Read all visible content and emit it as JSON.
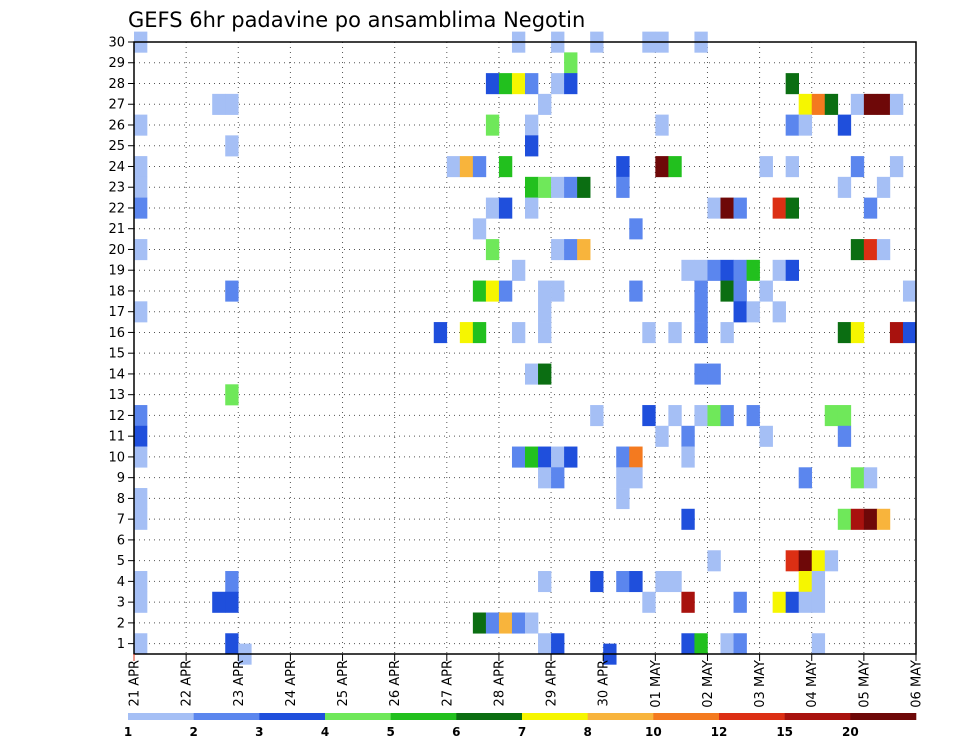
{
  "chart_data": {
    "type": "heatmap",
    "title": "GEFS 6hr padavine po ansamblima Negotin",
    "xlabel": "",
    "ylabel": "",
    "grid": true,
    "x_ticks": [
      "21 APR",
      "22 APR",
      "23 APR",
      "24 APR",
      "25 APR",
      "26 APR",
      "27 APR",
      "28 APR",
      "29 APR",
      "30 APR",
      "01 MAY",
      "02 MAY",
      "03 MAY",
      "04 MAY",
      "05 MAY",
      "06 MAY"
    ],
    "y_ticks": [
      "1",
      "2",
      "3",
      "4",
      "5",
      "6",
      "7",
      "8",
      "9",
      "10",
      "11",
      "12",
      "13",
      "14",
      "15",
      "16",
      "17",
      "18",
      "19",
      "20",
      "21",
      "22",
      "23",
      "24",
      "25",
      "26",
      "27",
      "28",
      "29",
      "30"
    ],
    "xlim": [
      "21 APR",
      "06 MAY"
    ],
    "ylim": [
      0.5,
      30
    ],
    "steps_per_day": 4,
    "legend": {
      "position": "bottom",
      "levels": [
        "1",
        "2",
        "3",
        "4",
        "5",
        "6",
        "7",
        "8",
        "10",
        "12",
        "15",
        "20"
      ],
      "colors": [
        "#a5bff5",
        "#5b86ee",
        "#1f4fdc",
        "#6fe85a",
        "#22c01e",
        "#0b6e12",
        "#f6f600",
        "#f8b43c",
        "#f47a1f",
        "#dc2f14",
        "#a8120e",
        "#6e0808"
      ]
    },
    "cells": [
      {
        "member": 30,
        "step": 1,
        "level": 1
      },
      {
        "member": 30,
        "step": 30,
        "level": 1
      },
      {
        "member": 30,
        "step": 33,
        "level": 1
      },
      {
        "member": 30,
        "step": 36,
        "level": 1
      },
      {
        "member": 30,
        "step": 40,
        "level": 1
      },
      {
        "member": 30,
        "step": 41,
        "level": 1
      },
      {
        "member": 30,
        "step": 44,
        "level": 1
      },
      {
        "member": 29,
        "step": 34,
        "level": 4
      },
      {
        "member": 28,
        "step": 28,
        "level": 3
      },
      {
        "member": 28,
        "step": 29,
        "level": 5
      },
      {
        "member": 28,
        "step": 30,
        "level": 7
      },
      {
        "member": 28,
        "step": 31,
        "level": 2
      },
      {
        "member": 28,
        "step": 33,
        "level": 1
      },
      {
        "member": 28,
        "step": 34,
        "level": 3
      },
      {
        "member": 28,
        "step": 51,
        "level": 6
      },
      {
        "member": 27,
        "step": 7,
        "level": 1
      },
      {
        "member": 27,
        "step": 8,
        "level": 1
      },
      {
        "member": 27,
        "step": 32,
        "level": 1
      },
      {
        "member": 27,
        "step": 52,
        "level": 7
      },
      {
        "member": 27,
        "step": 53,
        "level": 9
      },
      {
        "member": 27,
        "step": 54,
        "level": 6
      },
      {
        "member": 27,
        "step": 56,
        "level": 1
      },
      {
        "member": 27,
        "step": 57,
        "level": 12
      },
      {
        "member": 27,
        "step": 58,
        "level": 12
      },
      {
        "member": 27,
        "step": 59,
        "level": 1
      },
      {
        "member": 26,
        "step": 1,
        "level": 1
      },
      {
        "member": 26,
        "step": 28,
        "level": 4
      },
      {
        "member": 26,
        "step": 31,
        "level": 1
      },
      {
        "member": 26,
        "step": 41,
        "level": 1
      },
      {
        "member": 26,
        "step": 51,
        "level": 2
      },
      {
        "member": 26,
        "step": 52,
        "level": 1
      },
      {
        "member": 26,
        "step": 55,
        "level": 3
      },
      {
        "member": 25,
        "step": 8,
        "level": 1
      },
      {
        "member": 25,
        "step": 31,
        "level": 3
      },
      {
        "member": 24,
        "step": 1,
        "level": 1
      },
      {
        "member": 24,
        "step": 25,
        "level": 1
      },
      {
        "member": 24,
        "step": 26,
        "level": 8
      },
      {
        "member": 24,
        "step": 27,
        "level": 2
      },
      {
        "member": 24,
        "step": 29,
        "level": 5
      },
      {
        "member": 24,
        "step": 38,
        "level": 3
      },
      {
        "member": 24,
        "step": 41,
        "level": 12
      },
      {
        "member": 24,
        "step": 42,
        "level": 5
      },
      {
        "member": 24,
        "step": 49,
        "level": 1
      },
      {
        "member": 24,
        "step": 51,
        "level": 1
      },
      {
        "member": 24,
        "step": 56,
        "level": 2
      },
      {
        "member": 24,
        "step": 59,
        "level": 1
      },
      {
        "member": 23,
        "step": 1,
        "level": 1
      },
      {
        "member": 23,
        "step": 31,
        "level": 5
      },
      {
        "member": 23,
        "step": 32,
        "level": 4
      },
      {
        "member": 23,
        "step": 33,
        "level": 1
      },
      {
        "member": 23,
        "step": 34,
        "level": 2
      },
      {
        "member": 23,
        "step": 35,
        "level": 6
      },
      {
        "member": 23,
        "step": 38,
        "level": 2
      },
      {
        "member": 23,
        "step": 55,
        "level": 1
      },
      {
        "member": 23,
        "step": 58,
        "level": 1
      },
      {
        "member": 22,
        "step": 1,
        "level": 2
      },
      {
        "member": 22,
        "step": 28,
        "level": 1
      },
      {
        "member": 22,
        "step": 29,
        "level": 3
      },
      {
        "member": 22,
        "step": 31,
        "level": 1
      },
      {
        "member": 22,
        "step": 45,
        "level": 1
      },
      {
        "member": 22,
        "step": 46,
        "level": 12
      },
      {
        "member": 22,
        "step": 47,
        "level": 2
      },
      {
        "member": 22,
        "step": 50,
        "level": 10
      },
      {
        "member": 22,
        "step": 51,
        "level": 6
      },
      {
        "member": 22,
        "step": 57,
        "level": 2
      },
      {
        "member": 21,
        "step": 27,
        "level": 1
      },
      {
        "member": 21,
        "step": 39,
        "level": 2
      },
      {
        "member": 20,
        "step": 1,
        "level": 1
      },
      {
        "member": 20,
        "step": 28,
        "level": 4
      },
      {
        "member": 20,
        "step": 33,
        "level": 1
      },
      {
        "member": 20,
        "step": 34,
        "level": 2
      },
      {
        "member": 20,
        "step": 35,
        "level": 8
      },
      {
        "member": 20,
        "step": 56,
        "level": 6
      },
      {
        "member": 20,
        "step": 57,
        "level": 10
      },
      {
        "member": 20,
        "step": 58,
        "level": 1
      },
      {
        "member": 19,
        "step": 30,
        "level": 1
      },
      {
        "member": 19,
        "step": 43,
        "level": 1
      },
      {
        "member": 19,
        "step": 44,
        "level": 1
      },
      {
        "member": 19,
        "step": 45,
        "level": 2
      },
      {
        "member": 19,
        "step": 46,
        "level": 3
      },
      {
        "member": 19,
        "step": 47,
        "level": 2
      },
      {
        "member": 19,
        "step": 48,
        "level": 5
      },
      {
        "member": 19,
        "step": 50,
        "level": 1
      },
      {
        "member": 19,
        "step": 51,
        "level": 3
      },
      {
        "member": 18,
        "step": 8,
        "level": 2
      },
      {
        "member": 18,
        "step": 27,
        "level": 5
      },
      {
        "member": 18,
        "step": 28,
        "level": 7
      },
      {
        "member": 18,
        "step": 29,
        "level": 2
      },
      {
        "member": 18,
        "step": 32,
        "level": 1
      },
      {
        "member": 18,
        "step": 33,
        "level": 1
      },
      {
        "member": 18,
        "step": 39,
        "level": 2
      },
      {
        "member": 18,
        "step": 44,
        "level": 2
      },
      {
        "member": 18,
        "step": 46,
        "level": 6
      },
      {
        "member": 18,
        "step": 47,
        "level": 2
      },
      {
        "member": 18,
        "step": 49,
        "level": 1
      },
      {
        "member": 18,
        "step": 60,
        "level": 1
      },
      {
        "member": 17,
        "step": 1,
        "level": 1
      },
      {
        "member": 17,
        "step": 32,
        "level": 1
      },
      {
        "member": 17,
        "step": 44,
        "level": 2
      },
      {
        "member": 17,
        "step": 47,
        "level": 3
      },
      {
        "member": 17,
        "step": 48,
        "level": 1
      },
      {
        "member": 17,
        "step": 50,
        "level": 1
      },
      {
        "member": 16,
        "step": 24,
        "level": 3
      },
      {
        "member": 16,
        "step": 26,
        "level": 7
      },
      {
        "member": 16,
        "step": 27,
        "level": 5
      },
      {
        "member": 16,
        "step": 30,
        "level": 1
      },
      {
        "member": 16,
        "step": 32,
        "level": 1
      },
      {
        "member": 16,
        "step": 40,
        "level": 1
      },
      {
        "member": 16,
        "step": 42,
        "level": 1
      },
      {
        "member": 16,
        "step": 44,
        "level": 2
      },
      {
        "member": 16,
        "step": 46,
        "level": 1
      },
      {
        "member": 16,
        "step": 55,
        "level": 6
      },
      {
        "member": 16,
        "step": 56,
        "level": 7
      },
      {
        "member": 16,
        "step": 59,
        "level": 11
      },
      {
        "member": 16,
        "step": 60,
        "level": 3
      },
      {
        "member": 14,
        "step": 31,
        "level": 1
      },
      {
        "member": 14,
        "step": 32,
        "level": 6
      },
      {
        "member": 14,
        "step": 44,
        "level": 2
      },
      {
        "member": 14,
        "step": 45,
        "level": 2
      },
      {
        "member": 13,
        "step": 8,
        "level": 4
      },
      {
        "member": 12,
        "step": 1,
        "level": 2
      },
      {
        "member": 12,
        "step": 36,
        "level": 1
      },
      {
        "member": 12,
        "step": 40,
        "level": 3
      },
      {
        "member": 12,
        "step": 42,
        "level": 1
      },
      {
        "member": 12,
        "step": 44,
        "level": 1
      },
      {
        "member": 12,
        "step": 45,
        "level": 4
      },
      {
        "member": 12,
        "step": 46,
        "level": 2
      },
      {
        "member": 12,
        "step": 48,
        "level": 2
      },
      {
        "member": 12,
        "step": 54,
        "level": 4
      },
      {
        "member": 12,
        "step": 55,
        "level": 4
      },
      {
        "member": 11,
        "step": 1,
        "level": 3
      },
      {
        "member": 11,
        "step": 41,
        "level": 1
      },
      {
        "member": 11,
        "step": 43,
        "level": 2
      },
      {
        "member": 11,
        "step": 49,
        "level": 1
      },
      {
        "member": 11,
        "step": 55,
        "level": 2
      },
      {
        "member": 10,
        "step": 1,
        "level": 1
      },
      {
        "member": 10,
        "step": 30,
        "level": 2
      },
      {
        "member": 10,
        "step": 31,
        "level": 5
      },
      {
        "member": 10,
        "step": 32,
        "level": 3
      },
      {
        "member": 10,
        "step": 33,
        "level": 1
      },
      {
        "member": 10,
        "step": 34,
        "level": 3
      },
      {
        "member": 10,
        "step": 38,
        "level": 2
      },
      {
        "member": 10,
        "step": 39,
        "level": 9
      },
      {
        "member": 10,
        "step": 43,
        "level": 1
      },
      {
        "member": 9,
        "step": 32,
        "level": 1
      },
      {
        "member": 9,
        "step": 33,
        "level": 2
      },
      {
        "member": 9,
        "step": 38,
        "level": 1
      },
      {
        "member": 9,
        "step": 39,
        "level": 1
      },
      {
        "member": 9,
        "step": 52,
        "level": 2
      },
      {
        "member": 9,
        "step": 56,
        "level": 4
      },
      {
        "member": 9,
        "step": 57,
        "level": 1
      },
      {
        "member": 8,
        "step": 1,
        "level": 1
      },
      {
        "member": 8,
        "step": 38,
        "level": 1
      },
      {
        "member": 7,
        "step": 1,
        "level": 1
      },
      {
        "member": 7,
        "step": 43,
        "level": 3
      },
      {
        "member": 7,
        "step": 55,
        "level": 4
      },
      {
        "member": 7,
        "step": 56,
        "level": 11
      },
      {
        "member": 7,
        "step": 57,
        "level": 12
      },
      {
        "member": 7,
        "step": 58,
        "level": 8
      },
      {
        "member": 5,
        "step": 45,
        "level": 1
      },
      {
        "member": 5,
        "step": 51,
        "level": 10
      },
      {
        "member": 5,
        "step": 52,
        "level": 12
      },
      {
        "member": 5,
        "step": 53,
        "level": 7
      },
      {
        "member": 5,
        "step": 54,
        "level": 1
      },
      {
        "member": 4,
        "step": 1,
        "level": 1
      },
      {
        "member": 4,
        "step": 8,
        "level": 2
      },
      {
        "member": 4,
        "step": 32,
        "level": 1
      },
      {
        "member": 4,
        "step": 36,
        "level": 3
      },
      {
        "member": 4,
        "step": 38,
        "level": 2
      },
      {
        "member": 4,
        "step": 39,
        "level": 3
      },
      {
        "member": 4,
        "step": 41,
        "level": 1
      },
      {
        "member": 4,
        "step": 42,
        "level": 1
      },
      {
        "member": 4,
        "step": 52,
        "level": 7
      },
      {
        "member": 4,
        "step": 53,
        "level": 1
      },
      {
        "member": 3,
        "step": 1,
        "level": 1
      },
      {
        "member": 3,
        "step": 7,
        "level": 3
      },
      {
        "member": 3,
        "step": 8,
        "level": 3
      },
      {
        "member": 3,
        "step": 40,
        "level": 1
      },
      {
        "member": 3,
        "step": 43,
        "level": 11
      },
      {
        "member": 3,
        "step": 47,
        "level": 2
      },
      {
        "member": 3,
        "step": 50,
        "level": 7
      },
      {
        "member": 3,
        "step": 51,
        "level": 3
      },
      {
        "member": 3,
        "step": 52,
        "level": 1
      },
      {
        "member": 3,
        "step": 53,
        "level": 1
      },
      {
        "member": 2,
        "step": 27,
        "level": 6
      },
      {
        "member": 2,
        "step": 28,
        "level": 2
      },
      {
        "member": 2,
        "step": 29,
        "level": 8
      },
      {
        "member": 2,
        "step": 30,
        "level": 2
      },
      {
        "member": 2,
        "step": 31,
        "level": 1
      },
      {
        "member": 1,
        "step": 1,
        "level": 1
      },
      {
        "member": 1,
        "step": 8,
        "level": 3
      },
      {
        "member": 1,
        "step": 32,
        "level": 1
      },
      {
        "member": 1,
        "step": 33,
        "level": 3
      },
      {
        "member": 1,
        "step": 43,
        "level": 3
      },
      {
        "member": 1,
        "step": 44,
        "level": 5
      },
      {
        "member": 1,
        "step": 46,
        "level": 1
      },
      {
        "member": 1,
        "step": 47,
        "level": 2
      },
      {
        "member": 1,
        "step": 53,
        "level": 1
      },
      {
        "member": 0.5,
        "step": 9,
        "level": 1
      },
      {
        "member": 0.5,
        "step": 37,
        "level": 3
      }
    ]
  }
}
